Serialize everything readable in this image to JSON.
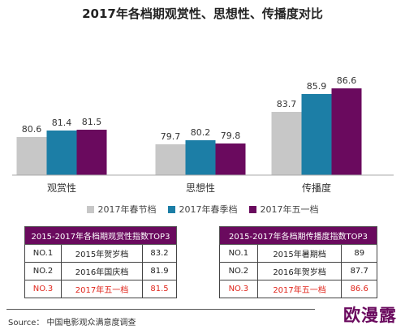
{
  "chart_data": {
    "type": "bar",
    "title": "2017年各档期观赏性、思想性、传播度对比",
    "categories": [
      "观赏性",
      "思想性",
      "传播度"
    ],
    "series": [
      {
        "name": "2017年春节档",
        "color": "#c7c7c7",
        "values": [
          80.6,
          79.7,
          83.7
        ]
      },
      {
        "name": "2017年春季档",
        "color": "#1c7ea6",
        "values": [
          81.4,
          80.2,
          85.9
        ]
      },
      {
        "name": "2017年五一档",
        "color": "#6a0a5e",
        "values": [
          81.5,
          79.8,
          86.6
        ]
      }
    ]
  },
  "table_left": {
    "header": "2015-2017年各档期观赏性指数TOP3",
    "rows": [
      {
        "rank": "NO.1",
        "period": "2015年贺岁档",
        "value": "83.2"
      },
      {
        "rank": "NO.2",
        "period": "2016年国庆档",
        "value": "81.9"
      },
      {
        "rank": "NO.3",
        "period": "2017年五一档",
        "value": "81.5"
      }
    ]
  },
  "table_right": {
    "header": "2015-2017年各档期传播度指数TOP3",
    "rows": [
      {
        "rank": "NO.1",
        "period": "2015年暑期档",
        "value": "89"
      },
      {
        "rank": "NO.2",
        "period": "2016年贺岁档",
        "value": "87.7"
      },
      {
        "rank": "NO.3",
        "period": "2017年五一档",
        "value": "86.6"
      }
    ]
  },
  "source": "Source： 中国电影观众满意度调查",
  "logo": "欧漫露"
}
